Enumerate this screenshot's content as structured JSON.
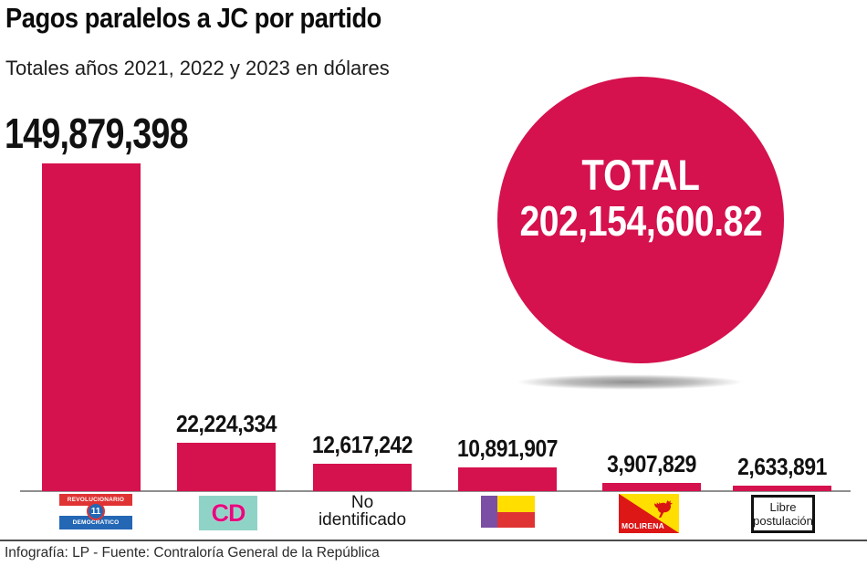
{
  "header": {
    "title": "Pagos paralelos a JC por partido",
    "subtitle": "Totales años 2021, 2022 y 2023 en dólares"
  },
  "total": {
    "label": "TOTAL",
    "value": "202,154,600.82"
  },
  "colors": {
    "accent": "#D5114E",
    "prd_red": "#E03434",
    "prd_blue": "#2367B5",
    "cd_teal": "#8FD3C7",
    "cd_pink": "#E6097E",
    "pp_purple": "#7B4FA3",
    "flag_yellow": "#FFDE00",
    "molirena_red": "#DD1616"
  },
  "chart_data": {
    "type": "bar",
    "title": "Pagos paralelos a JC por partido",
    "subtitle": "Totales años 2021, 2022 y 2023 en dólares",
    "categories": [
      "Partido Revolucionario Democrático",
      "Cambio Democrático",
      "No identificado",
      "Partido Popular",
      "MOLIRENA",
      "Libre postulación"
    ],
    "values": [
      149879398,
      22224334,
      12617242,
      10891907,
      3907829,
      2633891
    ],
    "value_labels": [
      "149,879,398",
      "22,224,334",
      "12,617,242",
      "10,891,907",
      "3,907,829",
      "2,633,891"
    ],
    "total": 202154600.82,
    "unit": "dólares",
    "bar_color": "#D5114E",
    "grid": false,
    "legend": "none",
    "ylim": [
      0,
      149879398
    ]
  },
  "logos": {
    "prd": {
      "top_text": "REVOLUCIONARIO",
      "circle_text": "11",
      "bottom_text": "DEMOCRATICO"
    },
    "cd": {
      "text": "CD"
    },
    "no_identificado": {
      "line1": "No",
      "line2": "identificado"
    },
    "molirena": {
      "text": "MOLIRENA"
    },
    "libre": {
      "line1": "Libre",
      "line2": "postulación"
    }
  },
  "footer": {
    "credit": "Infografía: LP - Fuente: Contraloría General de la República"
  }
}
